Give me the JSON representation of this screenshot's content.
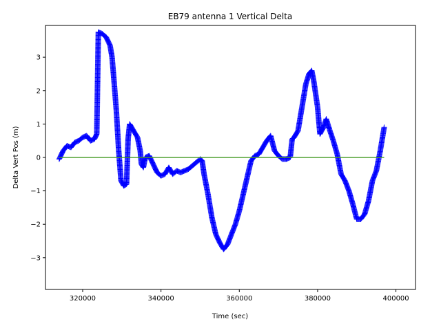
{
  "chart_data": {
    "type": "scatter",
    "title": "EB79 antenna 1 Vertical Delta",
    "xlabel": "Time (sec)",
    "ylabel": "Delta Vert Pos (m)",
    "xlim": [
      310500,
      405000
    ],
    "ylim": [
      -3.95,
      3.95
    ],
    "grid": false,
    "xticks": [
      320000,
      340000,
      360000,
      380000,
      400000
    ],
    "xtick_labels": [
      "320000",
      "340000",
      "360000",
      "380000",
      "400000"
    ],
    "yticks": [
      -3,
      -2,
      -1,
      0,
      1,
      2,
      3
    ],
    "ytick_labels": [
      "−3",
      "−2",
      "−1",
      "0",
      "1",
      "2",
      "3"
    ],
    "series": [
      {
        "marker": "plus",
        "color": "#0000ff",
        "x": [
          314000,
          315000,
          316000,
          317000,
          318000,
          319000,
          320000,
          321000,
          322000,
          323000,
          323600,
          324000,
          325000,
          326000,
          327000,
          327500,
          328000,
          328600,
          329200,
          329800,
          330500,
          331200,
          331600,
          332000,
          333000,
          334000,
          334700,
          335000,
          335500,
          336000,
          337000,
          338000,
          339000,
          340000,
          341000,
          342000,
          343000,
          344000,
          345000,
          346000,
          347000,
          348000,
          349000,
          350000,
          350500,
          351000,
          352000,
          353000,
          354000,
          355000,
          356000,
          357000,
          358000,
          359000,
          360000,
          361000,
          362000,
          363000,
          364000,
          365000,
          366000,
          367000,
          368000,
          369000,
          370000,
          371000,
          372000,
          373000,
          373500,
          374000,
          375000,
          376000,
          377000,
          377800,
          378500,
          379000,
          380000,
          380600,
          381500,
          382200,
          383000,
          384000,
          385000,
          386000,
          387000,
          388000,
          389000,
          390000,
          391000,
          392000,
          393000,
          394000,
          395000,
          396000,
          397000
        ],
        "y": [
          -0.05,
          0.2,
          0.35,
          0.3,
          0.45,
          0.5,
          0.6,
          0.65,
          0.5,
          0.55,
          0.7,
          3.75,
          3.7,
          3.6,
          3.35,
          3.0,
          2.3,
          1.4,
          0.2,
          -0.7,
          -0.85,
          -0.8,
          0.55,
          1.0,
          0.8,
          0.6,
          0.2,
          -0.2,
          -0.3,
          0.0,
          0.05,
          -0.2,
          -0.45,
          -0.55,
          -0.5,
          -0.3,
          -0.5,
          -0.4,
          -0.45,
          -0.4,
          -0.35,
          -0.25,
          -0.15,
          -0.05,
          -0.1,
          -0.5,
          -1.1,
          -1.8,
          -2.3,
          -2.55,
          -2.75,
          -2.6,
          -2.3,
          -2.0,
          -1.6,
          -1.1,
          -0.6,
          -0.1,
          0.05,
          0.1,
          0.3,
          0.5,
          0.65,
          0.2,
          0.05,
          -0.05,
          -0.05,
          0.0,
          0.55,
          0.6,
          0.8,
          1.5,
          2.2,
          2.5,
          2.6,
          2.3,
          1.5,
          0.7,
          0.9,
          1.15,
          0.85,
          0.5,
          0.1,
          -0.5,
          -0.7,
          -1.0,
          -1.4,
          -1.85,
          -1.85,
          -1.7,
          -1.3,
          -0.7,
          -0.4,
          0.2,
          0.9
        ]
      },
      {
        "marker": "line",
        "color": "#ff7f0e",
        "x": [
          314000,
          397000
        ],
        "y": [
          0,
          0
        ]
      },
      {
        "marker": "line",
        "color": "#2ca02c",
        "x": [
          314000,
          397000
        ],
        "y": [
          0,
          0
        ]
      }
    ]
  }
}
